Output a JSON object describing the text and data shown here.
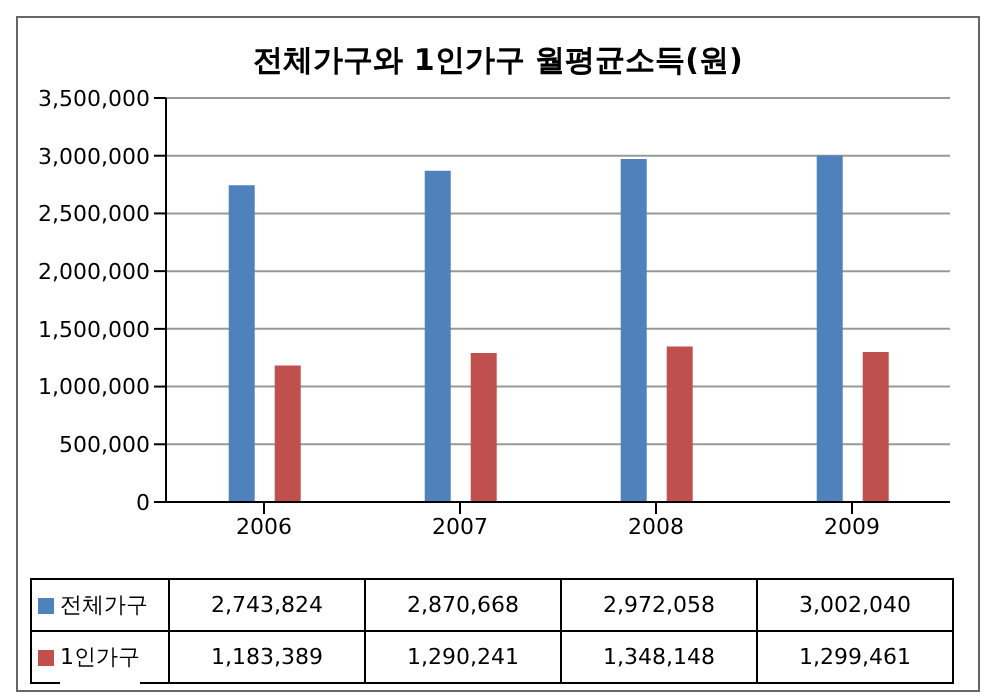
{
  "chart_data": {
    "type": "bar",
    "title": "전체가구와 1인가구 월평균소득(원)",
    "categories": [
      "2006",
      "2007",
      "2008",
      "2009"
    ],
    "series": [
      {
        "name": "전체가구",
        "color": "#4f81bd",
        "values": [
          2743824,
          2870668,
          2972058,
          3002040
        ],
        "value_labels": [
          "2,743,824",
          "2,870,668",
          "2,972,058",
          "3,002,040"
        ]
      },
      {
        "name": "1인가구",
        "color": "#c0504d",
        "values": [
          1183389,
          1290241,
          1348148,
          1299461
        ],
        "value_labels": [
          "1,183,389",
          "1,290,241",
          "1,348,148",
          "1,299,461"
        ]
      }
    ],
    "ylim": [
      0,
      3500000
    ],
    "yticks": [
      {
        "value": 0,
        "label": "0"
      },
      {
        "value": 500000,
        "label": "500,000"
      },
      {
        "value": 1000000,
        "label": "1,000,000"
      },
      {
        "value": 1500000,
        "label": "1,500,000"
      },
      {
        "value": 2000000,
        "label": "2,000,000"
      },
      {
        "value": 2500000,
        "label": "2,500,000"
      },
      {
        "value": 3000000,
        "label": "3,000,000"
      },
      {
        "value": 3500000,
        "label": "3,500,000"
      }
    ],
    "grid": "y",
    "legend": "bottom"
  }
}
